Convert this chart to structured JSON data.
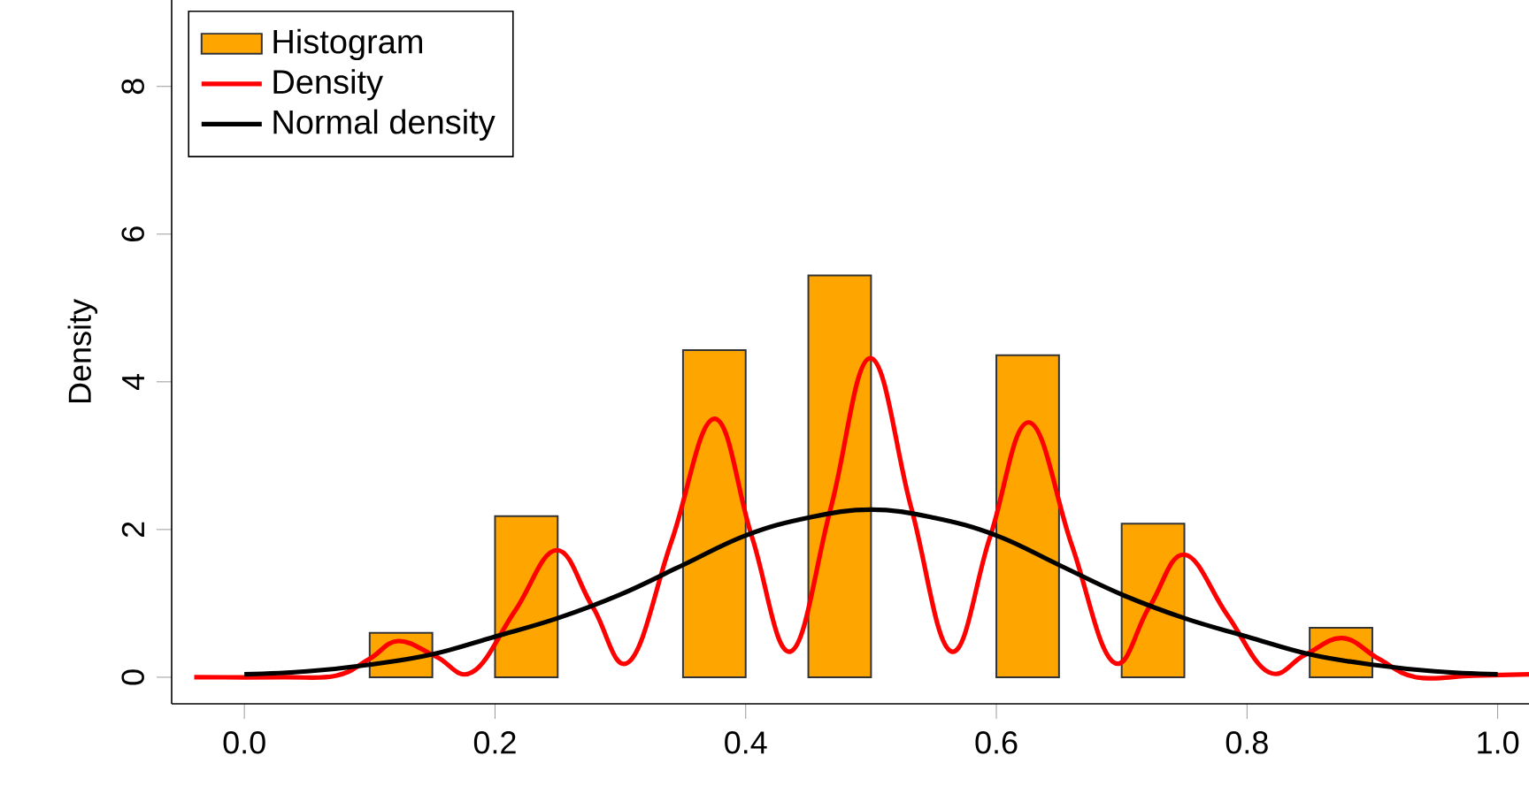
{
  "chart_data": {
    "type": "histogram",
    "ylabel": "Density",
    "xlim": [
      -0.058,
      1.025
    ],
    "ylim": [
      -0.36,
      9.17
    ],
    "xticks": [
      {
        "value": 0,
        "label": "0.0"
      },
      {
        "value": 0.2,
        "label": "0.2"
      },
      {
        "value": 0.4,
        "label": "0.4"
      },
      {
        "value": 0.6,
        "label": "0.6"
      },
      {
        "value": 0.8,
        "label": "0.8"
      },
      {
        "value": 1,
        "label": "1.0"
      }
    ],
    "yticks": [
      0,
      2,
      4,
      6,
      8
    ],
    "legend": "top left",
    "series": [
      {
        "name": "Histogram",
        "color": "#ffa500",
        "bins": [
          0.1,
          0.15,
          0.2,
          0.25,
          0.3,
          0.35,
          0.4,
          0.45,
          0.5,
          0.55,
          0.6,
          0.65,
          0.7,
          0.75,
          0.8,
          0.85,
          0.9
        ],
        "values": [
          0.6,
          0,
          2.18,
          0,
          0,
          4.43,
          0,
          5.44,
          0,
          0,
          4.36,
          0,
          2.08,
          0,
          0,
          0.67
        ]
      },
      {
        "name": "Density",
        "type": "line",
        "color": "#ff0000",
        "x": [
          -0.04,
          0.03,
          0.073,
          0.1,
          0.123,
          0.153,
          0.182,
          0.216,
          0.249,
          0.278,
          0.307,
          0.341,
          0.375,
          0.405,
          0.436,
          0.468,
          0.4995,
          0.532,
          0.564,
          0.595,
          0.626,
          0.66,
          0.693,
          0.722,
          0.75,
          0.784,
          0.817,
          0.846,
          0.876,
          0.905,
          0.935,
          0.98,
          1.025
        ],
        "values": [
          0.0,
          0.0,
          0.02,
          0.25,
          0.49,
          0.28,
          0.07,
          0.9,
          1.72,
          0.95,
          0.21,
          1.85,
          3.5,
          1.9,
          0.35,
          2.3,
          4.32,
          2.3,
          0.35,
          1.9,
          3.45,
          1.8,
          0.21,
          0.95,
          1.66,
          0.85,
          0.07,
          0.3,
          0.53,
          0.25,
          0.0,
          0.02,
          0.04
        ]
      },
      {
        "name": "Normal density",
        "type": "line",
        "color": "#000000",
        "x": [
          0,
          0.05,
          0.1,
          0.15,
          0.2,
          0.25,
          0.3,
          0.35,
          0.4,
          0.45,
          0.5,
          0.55,
          0.6,
          0.65,
          0.7,
          0.75,
          0.8,
          0.85,
          0.9,
          0.95,
          1
        ],
        "values": [
          0.04,
          0.08,
          0.17,
          0.31,
          0.55,
          0.8,
          1.12,
          1.52,
          1.92,
          2.16,
          2.27,
          2.16,
          1.92,
          1.52,
          1.12,
          0.8,
          0.55,
          0.31,
          0.17,
          0.08,
          0.04
        ]
      }
    ]
  }
}
